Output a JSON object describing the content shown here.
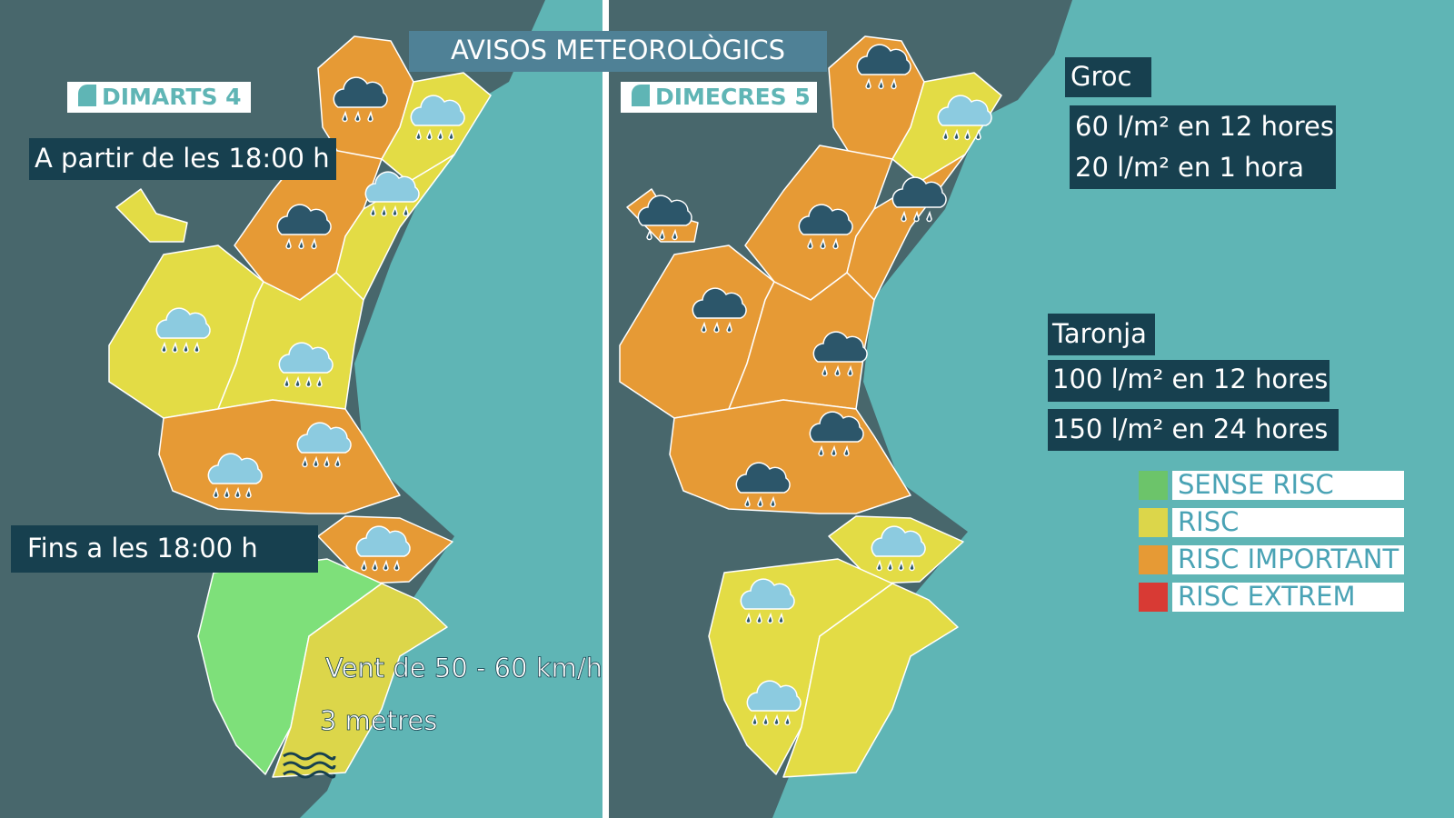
{
  "header": {
    "title": "AVISOS METEOROLÒGICS"
  },
  "panels": [
    {
      "day": "DIMARTS 4",
      "start": "A partir de les 18:00 h",
      "until": "Fins a les 18:00 h",
      "wind": "Vent de 50 - 60 km/h",
      "waves": "3 metres"
    },
    {
      "day": "DIMECRES 5"
    }
  ],
  "thresholds": [
    {
      "level": "Groc",
      "lines": [
        "60 l/m² en 12 hores",
        "20 l/m² en 1 hora"
      ]
    },
    {
      "level": "Taronja",
      "lines": [
        "100 l/m² en 12 hores",
        "150 l/m² en 24 hores"
      ]
    }
  ],
  "legend": [
    {
      "label": "SENSE RISC",
      "color": "#6cc46a"
    },
    {
      "label": "RISC",
      "color": "#dcd64a"
    },
    {
      "label": "RISC IMPORTANT",
      "color": "#e69a35"
    },
    {
      "label": "RISC EXTREM",
      "color": "#d83a34"
    }
  ]
}
